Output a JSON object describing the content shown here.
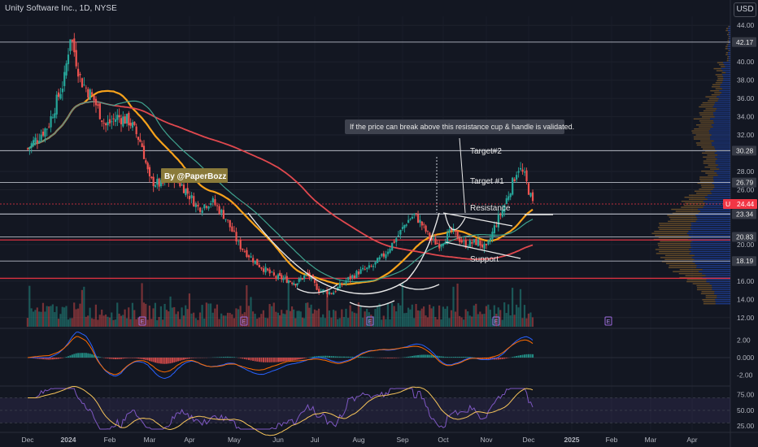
{
  "header": {
    "symbol_label": "Unity Software Inc., 1D, NYSE",
    "currency": "USD"
  },
  "chart_data": {
    "type": "candlestick",
    "price_axis": {
      "ylim": [
        11,
        45
      ],
      "ticks": [
        "44.00",
        "40.00",
        "38.00",
        "36.00",
        "34.00",
        "32.00",
        "28.00",
        "26.00",
        "20.00",
        "16.00",
        "14.00",
        "12.00"
      ]
    },
    "time_axis": {
      "ticks": [
        "Dec",
        "2024",
        "Feb",
        "Mar",
        "Apr",
        "May",
        "Jun",
        "Jul",
        "Aug",
        "Sep",
        "Oct",
        "Nov",
        "Dec",
        "2025",
        "Feb",
        "Mar",
        "Apr"
      ]
    },
    "last_price": {
      "symbol": "U",
      "value": "24.44",
      "color": "#f23645"
    },
    "horizontal_levels": [
      {
        "value": 42.17,
        "label": "42.17",
        "color": "#c8ccd6"
      },
      {
        "value": 30.28,
        "label": "30.28",
        "color": "#c8ccd6"
      },
      {
        "value": 26.79,
        "label": "26.79",
        "color": "#c8ccd6"
      },
      {
        "value": 23.34,
        "label": "23.34",
        "color": "#c8ccd6"
      },
      {
        "value": 23.34,
        "label": "23.34",
        "color": "#c8ccd6"
      },
      {
        "value": 20.83,
        "label": "20.83",
        "color": "#c8ccd6"
      },
      {
        "value": 20.5,
        "label": "",
        "color": "#f23645"
      },
      {
        "value": 18.19,
        "label": "18.19",
        "color": "#c8ccd6"
      },
      {
        "value": 16.3,
        "label": "",
        "color": "#f23645"
      }
    ],
    "annotations": {
      "callout": "If the price can break above this resistance cup & handle is validated.",
      "target2": "Target#2",
      "target1": "Target #1",
      "resistance": "Resistance",
      "support": "Support",
      "author": "By @PaperBozz"
    },
    "earnings_marker": "E",
    "close_series": {
      "description": "approximate daily closes, Dec 2023 to mid Dec 2024",
      "keypoints_month_index_to_price": [
        [
          0,
          30.5
        ],
        [
          0.5,
          33
        ],
        [
          0.9,
          38
        ],
        [
          1.05,
          43
        ],
        [
          1.3,
          38
        ],
        [
          1.6,
          36
        ],
        [
          1.9,
          33
        ],
        [
          2.2,
          34
        ],
        [
          2.5,
          33.5
        ],
        [
          2.8,
          31
        ],
        [
          3.0,
          27
        ],
        [
          3.3,
          26.5
        ],
        [
          3.6,
          27.5
        ],
        [
          3.9,
          26
        ],
        [
          4.2,
          24
        ],
        [
          4.5,
          24.8
        ],
        [
          4.8,
          23
        ],
        [
          5.1,
          20
        ],
        [
          5.5,
          18
        ],
        [
          5.9,
          16.5
        ],
        [
          6.2,
          16.2
        ],
        [
          6.5,
          15.8
        ],
        [
          6.8,
          16.8
        ],
        [
          7.1,
          15
        ],
        [
          7.4,
          14.7
        ],
        [
          7.7,
          16
        ],
        [
          8.0,
          17
        ],
        [
          8.3,
          17.5
        ],
        [
          8.6,
          19
        ],
        [
          8.9,
          21
        ],
        [
          9.1,
          22.5
        ],
        [
          9.3,
          23.3
        ],
        [
          9.5,
          22
        ],
        [
          9.7,
          20.5
        ],
        [
          9.9,
          20
        ],
        [
          10.2,
          21.5
        ],
        [
          10.5,
          20
        ],
        [
          10.8,
          20.3
        ],
        [
          11.0,
          19.5
        ],
        [
          11.2,
          22
        ],
        [
          11.4,
          24
        ],
        [
          11.6,
          26.5
        ],
        [
          11.75,
          28.5
        ],
        [
          11.9,
          27.5
        ],
        [
          12.1,
          24.4
        ]
      ]
    },
    "moving_averages": [
      {
        "color": "#f7a21b"
      },
      {
        "color": "#e0484e"
      },
      {
        "color": "#3fa28e"
      }
    ],
    "macd_panel": {
      "ticks": [
        "2.00",
        "0.000",
        "-2.00"
      ],
      "ylim": [
        -2.8,
        2.8
      ]
    },
    "rsi_panel": {
      "ticks": [
        "75.00",
        "50.00",
        "25.00"
      ],
      "ylim": [
        20,
        85
      ]
    }
  }
}
